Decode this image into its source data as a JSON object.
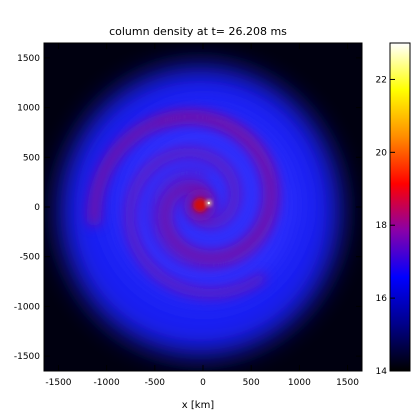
{
  "chart_data": {
    "type": "heatmap",
    "title": "column density at t= 26.208 ms",
    "xlabel": "x [km]",
    "ylabel": "",
    "xlim": [
      -1650,
      1650
    ],
    "ylim": [
      -1650,
      1650
    ],
    "x_ticks": [
      -1500,
      -1000,
      -500,
      0,
      500,
      1000,
      1500
    ],
    "x_tick_labels": [
      "-1500",
      "-1000",
      "-500",
      "0",
      "500",
      "1000",
      "1500"
    ],
    "y_ticks": [
      -1500,
      -1000,
      -500,
      0,
      500,
      1000,
      1500
    ],
    "y_tick_labels": [
      "-1500",
      "-1000",
      "-500",
      "0",
      "500",
      "1000",
      "1500"
    ],
    "colorbar": {
      "range": [
        14,
        23
      ],
      "ticks": [
        14,
        16,
        18,
        20,
        22
      ],
      "tick_labels": [
        "14",
        "16",
        "18",
        "20",
        "22"
      ],
      "colors": [
        "#000000",
        "#00008a",
        "#0000ff",
        "#8a00a8",
        "#ff0000",
        "#ff8c00",
        "#ffff00",
        "#ffffff"
      ]
    },
    "background_color": "#000010",
    "image": {
      "disk_extent_km": 1450,
      "inner_disk_extent_km": 950,
      "spiral_center_km": [
        -30,
        20
      ],
      "hot_spot_km": [
        60,
        40
      ],
      "colors": {
        "outer_disk": "#1e22ff",
        "inner_disk": "#3030ff",
        "spiral_arm": "#7a10a0",
        "core": "#d01010",
        "hot_spot": "#ffffa0"
      }
    }
  }
}
